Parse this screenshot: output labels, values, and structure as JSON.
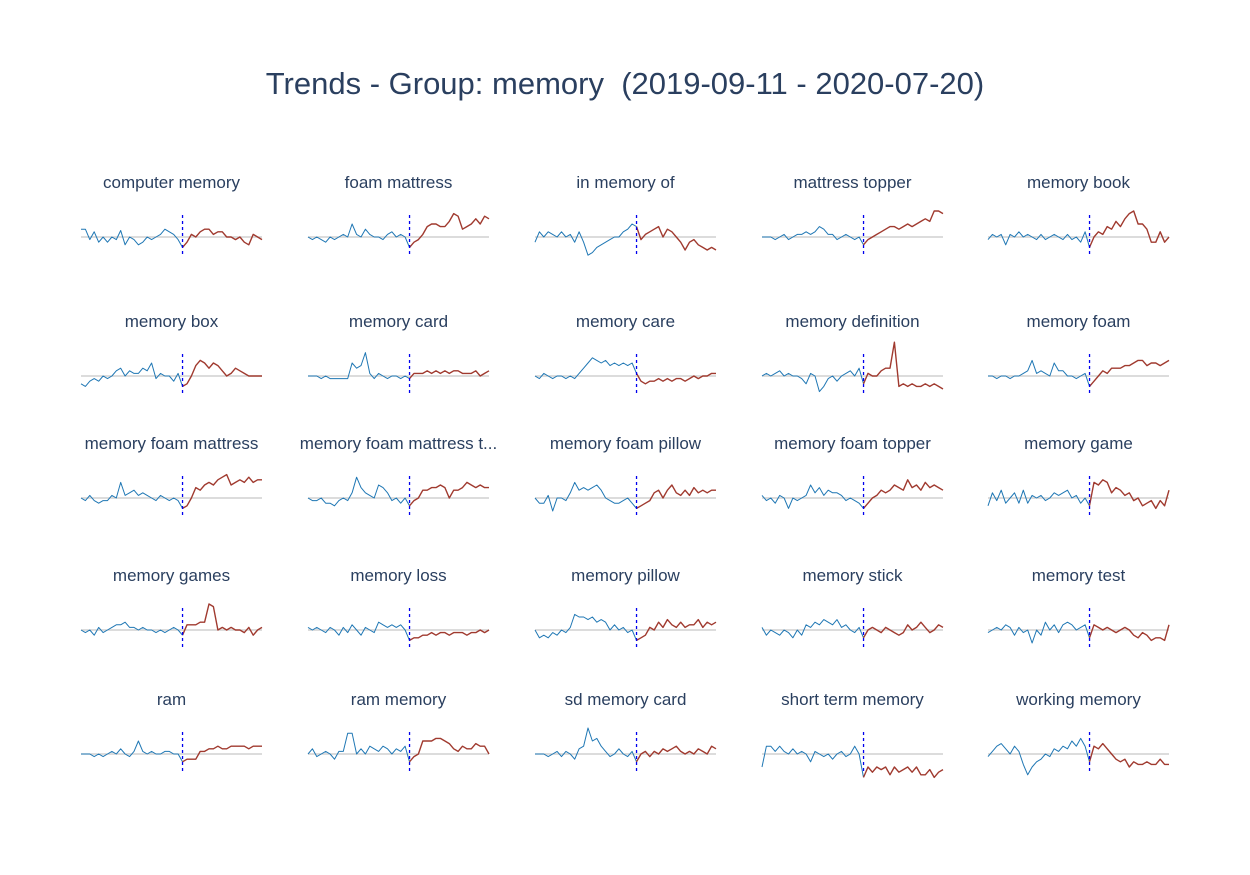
{
  "chart_title": "Trends - Group: memory  (2019-09-11 - 2020-07-20)",
  "colors": {
    "before": "#1f77b4",
    "after": "#a03a2f",
    "divider": "#0000ee",
    "baseline": "#c8c8c8",
    "title": "#2a3f5f"
  },
  "chart_data": [
    {
      "type": "line",
      "title": "computer memory",
      "split_index": 23,
      "baseline": 0,
      "ylim": [
        -1,
        1
      ],
      "values": [
        0.3,
        0.3,
        -0.1,
        0.2,
        -0.2,
        0.0,
        -0.2,
        0.0,
        -0.1,
        0.25,
        -0.3,
        0.0,
        -0.1,
        -0.3,
        -0.2,
        0.0,
        -0.1,
        0.0,
        0.1,
        0.3,
        0.2,
        0.1,
        -0.1,
        -0.4,
        -0.2,
        0.1,
        0.0,
        0.2,
        0.3,
        0.3,
        0.1,
        0.2,
        0.2,
        0.0,
        0.0,
        -0.1,
        0.0,
        -0.2,
        -0.3,
        0.1,
        0.0,
        -0.1
      ]
    },
    {
      "type": "line",
      "title": "foam mattress",
      "split_index": 23,
      "baseline": 0,
      "ylim": [
        -1,
        1
      ],
      "values": [
        0.0,
        -0.1,
        0.0,
        -0.1,
        -0.2,
        0.0,
        -0.1,
        0.0,
        0.1,
        0.0,
        0.5,
        0.1,
        0.0,
        0.3,
        0.1,
        0.0,
        0.0,
        -0.1,
        0.1,
        0.2,
        0.0,
        0.1,
        0.0,
        -0.4,
        -0.2,
        -0.1,
        0.1,
        0.4,
        0.5,
        0.5,
        0.4,
        0.4,
        0.6,
        0.9,
        0.8,
        0.3,
        0.4,
        0.5,
        0.7,
        0.5,
        0.8,
        0.7
      ]
    },
    {
      "type": "line",
      "title": "in memory of",
      "split_index": 23,
      "baseline": 0,
      "ylim": [
        -1,
        1
      ],
      "values": [
        -0.2,
        0.2,
        0.0,
        0.2,
        0.1,
        0.0,
        0.2,
        0.0,
        0.1,
        -0.2,
        0.2,
        -0.2,
        -0.7,
        -0.6,
        -0.4,
        -0.3,
        -0.2,
        -0.1,
        0.0,
        0.0,
        0.2,
        0.3,
        0.5,
        0.4,
        -0.1,
        0.1,
        0.2,
        0.3,
        0.4,
        0.0,
        0.3,
        0.2,
        0.0,
        -0.2,
        -0.5,
        -0.2,
        -0.1,
        -0.3,
        -0.4,
        -0.5,
        -0.4,
        -0.5
      ]
    },
    {
      "type": "line",
      "title": "mattress topper",
      "split_index": 23,
      "baseline": 0,
      "ylim": [
        -1,
        1
      ],
      "values": [
        0.0,
        0.0,
        0.0,
        -0.1,
        0.0,
        0.1,
        -0.1,
        0.0,
        0.1,
        0.1,
        0.2,
        0.1,
        0.2,
        0.4,
        0.3,
        0.1,
        0.1,
        -0.1,
        0.0,
        0.1,
        0.0,
        -0.1,
        0.0,
        -0.3,
        -0.1,
        0.0,
        0.1,
        0.2,
        0.3,
        0.4,
        0.4,
        0.3,
        0.4,
        0.5,
        0.4,
        0.5,
        0.6,
        0.7,
        0.6,
        1.0,
        1.0,
        0.9
      ]
    },
    {
      "type": "line",
      "title": "memory book",
      "split_index": 23,
      "baseline": 0,
      "ylim": [
        -1,
        1
      ],
      "values": [
        -0.1,
        0.1,
        0.0,
        0.1,
        -0.3,
        0.1,
        0.0,
        0.2,
        0.0,
        0.1,
        0.0,
        -0.1,
        0.1,
        -0.1,
        0.0,
        0.1,
        0.0,
        -0.1,
        0.1,
        -0.1,
        0.0,
        -0.2,
        0.2,
        -0.4,
        0.0,
        0.2,
        0.1,
        0.4,
        0.3,
        0.6,
        0.4,
        0.7,
        0.9,
        1.0,
        0.5,
        0.5,
        0.3,
        -0.2,
        -0.2,
        0.2,
        -0.2,
        0.0
      ]
    },
    {
      "type": "line",
      "title": "memory box",
      "split_index": 23,
      "baseline": 0,
      "ylim": [
        -1,
        1
      ],
      "values": [
        -0.3,
        -0.4,
        -0.2,
        -0.1,
        -0.2,
        0.0,
        -0.1,
        0.0,
        0.2,
        0.3,
        0.0,
        0.2,
        0.1,
        0.1,
        0.3,
        0.2,
        0.5,
        -0.1,
        0.1,
        0.0,
        0.0,
        -0.2,
        0.1,
        -0.4,
        -0.3,
        0.0,
        0.4,
        0.6,
        0.5,
        0.3,
        0.5,
        0.4,
        0.2,
        0.0,
        0.1,
        0.3,
        0.2,
        0.1,
        0.0,
        0.0,
        0.0,
        0.0
      ]
    },
    {
      "type": "line",
      "title": "memory card",
      "split_index": 23,
      "baseline": 0,
      "ylim": [
        -1,
        1
      ],
      "values": [
        0.0,
        0.0,
        0.0,
        -0.1,
        0.0,
        -0.1,
        -0.1,
        -0.1,
        -0.1,
        -0.1,
        0.5,
        0.3,
        0.4,
        0.9,
        0.1,
        -0.1,
        0.1,
        0.0,
        -0.1,
        0.0,
        0.0,
        -0.1,
        0.0,
        -0.1,
        0.1,
        0.1,
        0.1,
        0.2,
        0.1,
        0.2,
        0.1,
        0.2,
        0.1,
        0.2,
        0.2,
        0.1,
        0.1,
        0.1,
        0.2,
        0.0,
        0.1,
        0.2
      ]
    },
    {
      "type": "line",
      "title": "memory care",
      "split_index": 23,
      "baseline": 0,
      "ylim": [
        -1,
        1
      ],
      "values": [
        0.0,
        -0.1,
        0.1,
        0.0,
        -0.1,
        0.0,
        0.0,
        -0.1,
        0.0,
        -0.1,
        0.1,
        0.3,
        0.5,
        0.7,
        0.6,
        0.5,
        0.6,
        0.4,
        0.5,
        0.4,
        0.5,
        0.4,
        0.5,
        0.1,
        -0.2,
        -0.3,
        -0.2,
        -0.2,
        -0.1,
        -0.2,
        -0.1,
        -0.2,
        -0.1,
        -0.1,
        -0.2,
        -0.1,
        0.0,
        -0.1,
        0.0,
        0.0,
        0.1,
        0.1
      ]
    },
    {
      "type": "line",
      "title": "memory definition",
      "split_index": 23,
      "baseline": 0,
      "ylim": [
        -1,
        1
      ],
      "values": [
        0.0,
        0.1,
        0.0,
        0.1,
        0.2,
        0.0,
        0.1,
        0.0,
        0.0,
        -0.1,
        -0.3,
        0.1,
        0.0,
        -0.6,
        -0.4,
        -0.1,
        0.0,
        -0.2,
        0.0,
        0.1,
        0.2,
        0.0,
        0.3,
        -0.3,
        0.1,
        0.0,
        0.0,
        0.2,
        0.3,
        0.3,
        1.3,
        -0.4,
        -0.3,
        -0.4,
        -0.3,
        -0.4,
        -0.4,
        -0.3,
        -0.4,
        -0.3,
        -0.4,
        -0.5
      ]
    },
    {
      "type": "line",
      "title": "memory foam",
      "split_index": 23,
      "baseline": 0,
      "ylim": [
        -1,
        1
      ],
      "values": [
        0.0,
        0.0,
        -0.1,
        0.0,
        0.0,
        -0.1,
        0.0,
        0.0,
        0.1,
        0.2,
        0.6,
        0.1,
        0.2,
        0.1,
        0.0,
        0.5,
        0.2,
        0.2,
        0.0,
        0.0,
        -0.1,
        0.0,
        0.1,
        -0.4,
        -0.2,
        0.0,
        0.2,
        0.1,
        0.3,
        0.3,
        0.3,
        0.4,
        0.4,
        0.5,
        0.6,
        0.6,
        0.4,
        0.5,
        0.5,
        0.4,
        0.5,
        0.6
      ]
    },
    {
      "type": "line",
      "title": "memory foam mattress",
      "split_index": 23,
      "baseline": 0,
      "ylim": [
        -1,
        1
      ],
      "values": [
        0.0,
        -0.1,
        0.1,
        -0.1,
        -0.2,
        -0.1,
        -0.1,
        0.1,
        0.0,
        0.6,
        0.1,
        0.2,
        0.3,
        0.1,
        0.2,
        0.1,
        0.0,
        -0.1,
        0.1,
        0.0,
        -0.1,
        0.0,
        -0.1,
        -0.4,
        -0.3,
        0.0,
        0.4,
        0.3,
        0.5,
        0.6,
        0.5,
        0.7,
        0.8,
        0.9,
        0.5,
        0.6,
        0.7,
        0.6,
        0.8,
        0.6,
        0.7,
        0.7
      ]
    },
    {
      "type": "line",
      "title": "memory foam mattress t...",
      "split_index": 23,
      "baseline": 0,
      "ylim": [
        -1,
        1
      ],
      "values": [
        0.0,
        -0.1,
        -0.1,
        0.0,
        -0.2,
        -0.2,
        -0.3,
        -0.1,
        0.0,
        -0.1,
        0.2,
        0.8,
        0.4,
        0.2,
        0.1,
        0.0,
        0.5,
        0.4,
        0.2,
        -0.1,
        0.0,
        -0.2,
        0.0,
        -0.3,
        -0.1,
        0.0,
        0.3,
        0.3,
        0.4,
        0.4,
        0.5,
        0.4,
        0.0,
        0.3,
        0.3,
        0.4,
        0.6,
        0.5,
        0.4,
        0.5,
        0.4,
        0.4
      ]
    },
    {
      "type": "line",
      "title": "memory foam pillow",
      "split_index": 23,
      "baseline": 0,
      "ylim": [
        -1,
        1
      ],
      "values": [
        0.0,
        -0.2,
        -0.2,
        0.1,
        -0.5,
        0.0,
        0.0,
        -0.1,
        0.2,
        0.6,
        0.3,
        0.4,
        0.3,
        0.4,
        0.5,
        0.3,
        0.0,
        -0.1,
        -0.2,
        -0.2,
        -0.1,
        0.0,
        -0.2,
        -0.4,
        -0.3,
        -0.2,
        -0.1,
        0.2,
        0.3,
        0.0,
        0.3,
        0.5,
        0.2,
        0.1,
        0.3,
        0.1,
        0.4,
        0.2,
        0.3,
        0.2,
        0.3,
        0.3
      ]
    },
    {
      "type": "line",
      "title": "memory foam topper",
      "split_index": 23,
      "baseline": 0,
      "ylim": [
        -1,
        1
      ],
      "values": [
        0.1,
        -0.1,
        0.0,
        -0.2,
        0.1,
        0.0,
        -0.4,
        0.0,
        -0.1,
        0.0,
        0.1,
        0.5,
        0.2,
        0.4,
        0.1,
        0.3,
        0.2,
        0.2,
        0.1,
        -0.1,
        0.0,
        -0.1,
        -0.2,
        -0.4,
        -0.2,
        0.0,
        0.1,
        0.3,
        0.2,
        0.3,
        0.5,
        0.4,
        0.3,
        0.7,
        0.4,
        0.5,
        0.3,
        0.6,
        0.4,
        0.5,
        0.4,
        0.3
      ]
    },
    {
      "type": "line",
      "title": "memory game",
      "split_index": 23,
      "baseline": 0,
      "ylim": [
        -1,
        1
      ],
      "values": [
        -0.3,
        0.2,
        -0.1,
        0.3,
        -0.2,
        0.0,
        0.2,
        -0.2,
        0.3,
        -0.2,
        0.1,
        0.0,
        0.1,
        -0.1,
        0.0,
        0.2,
        0.1,
        0.2,
        0.3,
        0.0,
        0.1,
        -0.2,
        0.0,
        -0.3,
        0.6,
        0.5,
        0.7,
        0.6,
        0.2,
        0.4,
        0.3,
        0.1,
        0.2,
        -0.1,
        0.0,
        -0.3,
        -0.2,
        -0.1,
        -0.4,
        -0.1,
        -0.3,
        0.3
      ]
    },
    {
      "type": "line",
      "title": "memory games",
      "split_index": 23,
      "baseline": 0,
      "ylim": [
        -1,
        1
      ],
      "values": [
        0.0,
        -0.1,
        0.0,
        -0.2,
        0.1,
        -0.1,
        0.0,
        0.1,
        0.2,
        0.2,
        0.3,
        0.1,
        0.1,
        0.0,
        0.1,
        0.0,
        0.0,
        -0.1,
        0.0,
        -0.1,
        0.0,
        0.1,
        0.0,
        -0.2,
        0.2,
        0.2,
        0.2,
        0.3,
        0.3,
        1.0,
        0.9,
        0.0,
        0.1,
        0.0,
        0.1,
        0.0,
        0.0,
        -0.1,
        0.1,
        -0.2,
        0.0,
        0.1
      ]
    },
    {
      "type": "line",
      "title": "memory loss",
      "split_index": 23,
      "baseline": 0,
      "ylim": [
        -1,
        1
      ],
      "values": [
        0.1,
        0.0,
        0.1,
        0.0,
        -0.1,
        0.1,
        0.0,
        -0.2,
        0.1,
        -0.1,
        0.2,
        0.0,
        -0.2,
        0.1,
        0.0,
        -0.1,
        0.3,
        0.2,
        0.1,
        0.2,
        0.1,
        0.2,
        0.0,
        -0.4,
        -0.3,
        -0.3,
        -0.2,
        -0.2,
        -0.1,
        -0.2,
        -0.1,
        -0.1,
        -0.2,
        -0.1,
        -0.1,
        -0.1,
        -0.2,
        -0.1,
        -0.1,
        0.0,
        -0.1,
        0.0
      ]
    },
    {
      "type": "line",
      "title": "memory pillow",
      "split_index": 23,
      "baseline": 0,
      "ylim": [
        -1,
        1
      ],
      "values": [
        0.0,
        -0.3,
        -0.2,
        -0.3,
        -0.1,
        -0.2,
        0.0,
        -0.1,
        0.1,
        0.6,
        0.5,
        0.5,
        0.4,
        0.5,
        0.3,
        0.4,
        0.3,
        0.0,
        0.2,
        0.0,
        0.1,
        -0.1,
        0.0,
        -0.4,
        -0.3,
        -0.2,
        0.1,
        0.0,
        0.3,
        0.1,
        0.4,
        0.2,
        0.1,
        0.3,
        0.1,
        0.2,
        0.2,
        0.4,
        0.1,
        0.3,
        0.2,
        0.3
      ]
    },
    {
      "type": "line",
      "title": "memory stick",
      "split_index": 23,
      "baseline": 0,
      "ylim": [
        -1,
        1
      ],
      "values": [
        0.1,
        -0.2,
        0.0,
        -0.1,
        -0.2,
        0.0,
        -0.1,
        -0.3,
        0.0,
        -0.2,
        0.2,
        0.1,
        0.3,
        0.2,
        0.4,
        0.3,
        0.2,
        0.4,
        0.1,
        0.2,
        0.0,
        -0.1,
        0.1,
        -0.3,
        0.0,
        0.1,
        0.0,
        -0.1,
        0.1,
        0.0,
        -0.1,
        -0.2,
        -0.1,
        0.2,
        0.0,
        0.1,
        0.3,
        0.1,
        -0.1,
        0.0,
        0.2,
        0.1
      ]
    },
    {
      "type": "line",
      "title": "memory test",
      "split_index": 23,
      "baseline": 0,
      "ylim": [
        -1,
        1
      ],
      "values": [
        -0.1,
        0.0,
        0.1,
        0.0,
        0.2,
        0.1,
        -0.2,
        0.1,
        -0.1,
        0.0,
        -0.5,
        0.0,
        -0.2,
        0.3,
        0.0,
        0.2,
        -0.1,
        0.2,
        0.3,
        0.2,
        0.0,
        0.1,
        0.2,
        -0.3,
        0.2,
        0.1,
        0.0,
        0.1,
        0.0,
        -0.1,
        0.0,
        0.1,
        0.0,
        -0.2,
        -0.3,
        -0.1,
        -0.2,
        -0.4,
        -0.3,
        -0.3,
        -0.4,
        0.2
      ]
    },
    {
      "type": "line",
      "title": "ram",
      "split_index": 23,
      "baseline": 0,
      "ylim": [
        -1,
        1
      ],
      "values": [
        0.0,
        0.0,
        0.0,
        -0.1,
        0.0,
        -0.1,
        0.0,
        0.1,
        0.0,
        0.2,
        0.0,
        -0.1,
        0.1,
        0.5,
        0.1,
        0.0,
        0.1,
        0.0,
        0.0,
        0.1,
        0.1,
        0.0,
        0.0,
        -0.3,
        -0.2,
        -0.2,
        -0.2,
        0.1,
        0.1,
        0.2,
        0.2,
        0.3,
        0.2,
        0.2,
        0.3,
        0.3,
        0.3,
        0.3,
        0.2,
        0.3,
        0.3,
        0.3
      ]
    },
    {
      "type": "line",
      "title": "ram memory",
      "split_index": 23,
      "baseline": 0,
      "ylim": [
        -1,
        1
      ],
      "values": [
        0.0,
        0.2,
        -0.1,
        0.0,
        0.1,
        0.0,
        -0.2,
        0.1,
        0.1,
        0.8,
        0.8,
        0.0,
        0.2,
        0.0,
        0.3,
        0.2,
        0.1,
        0.3,
        0.2,
        0.0,
        0.2,
        0.1,
        0.3,
        -0.3,
        -0.1,
        0.0,
        0.5,
        0.5,
        0.5,
        0.6,
        0.6,
        0.5,
        0.4,
        0.2,
        0.1,
        0.3,
        0.2,
        0.2,
        0.4,
        0.3,
        0.3,
        0.0
      ]
    },
    {
      "type": "line",
      "title": "sd memory card",
      "split_index": 23,
      "baseline": 0,
      "ylim": [
        -1,
        1
      ],
      "values": [
        0.0,
        0.0,
        0.0,
        -0.1,
        0.0,
        0.1,
        -0.1,
        0.1,
        0.0,
        -0.2,
        0.2,
        0.3,
        1.0,
        0.5,
        0.6,
        0.3,
        0.1,
        -0.1,
        0.0,
        0.2,
        0.0,
        -0.1,
        0.1,
        -0.3,
        0.0,
        0.1,
        -0.1,
        0.1,
        0.0,
        0.2,
        0.1,
        0.2,
        0.3,
        0.1,
        0.0,
        0.1,
        0.0,
        0.2,
        0.1,
        0.0,
        0.3,
        0.2
      ]
    },
    {
      "type": "line",
      "title": "short term memory",
      "split_index": 23,
      "baseline": 0,
      "ylim": [
        -1,
        1
      ],
      "values": [
        -0.5,
        0.3,
        0.3,
        0.1,
        0.3,
        0.1,
        0.0,
        0.2,
        0.0,
        0.1,
        0.0,
        -0.3,
        0.1,
        0.0,
        -0.1,
        0.0,
        -0.2,
        0.0,
        0.1,
        -0.1,
        0.0,
        0.3,
        0.0,
        -0.9,
        -0.5,
        -0.7,
        -0.5,
        -0.6,
        -0.5,
        -0.8,
        -0.5,
        -0.7,
        -0.6,
        -0.5,
        -0.7,
        -0.5,
        -0.8,
        -0.8,
        -0.6,
        -0.9,
        -0.7,
        -0.6
      ]
    },
    {
      "type": "line",
      "title": "working memory",
      "split_index": 23,
      "baseline": 0,
      "ylim": [
        -1,
        1
      ],
      "values": [
        -0.1,
        0.1,
        0.3,
        0.4,
        0.2,
        0.0,
        0.3,
        0.1,
        -0.4,
        -0.8,
        -0.5,
        -0.3,
        -0.2,
        0.0,
        -0.1,
        0.2,
        0.1,
        0.3,
        0.2,
        0.5,
        0.3,
        0.6,
        0.3,
        -0.3,
        0.3,
        0.2,
        0.4,
        0.2,
        0.0,
        -0.2,
        -0.3,
        -0.2,
        -0.5,
        -0.3,
        -0.4,
        -0.4,
        -0.3,
        -0.4,
        -0.4,
        -0.2,
        -0.4,
        -0.4
      ]
    }
  ]
}
